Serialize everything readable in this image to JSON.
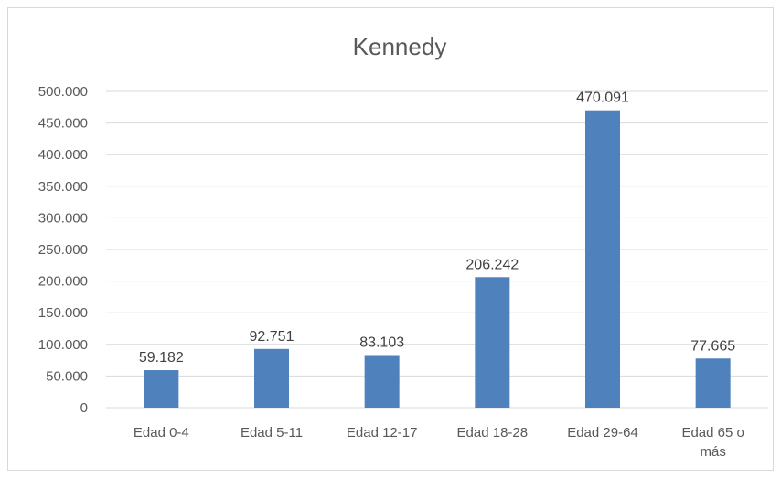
{
  "chart_data": {
    "type": "bar",
    "title": "Kennedy",
    "categories": [
      "Edad 0-4",
      "Edad 5-11",
      "Edad 12-17",
      "Edad 18-28",
      "Edad 29-64",
      "Edad 65 o más"
    ],
    "category_label_lines": [
      [
        "Edad 0-4"
      ],
      [
        "Edad 5-11"
      ],
      [
        "Edad 12-17"
      ],
      [
        "Edad 18-28"
      ],
      [
        "Edad 29-64"
      ],
      [
        "Edad 65 o",
        "más"
      ]
    ],
    "values": [
      59182,
      92751,
      83103,
      206242,
      470091,
      77665
    ],
    "value_labels": [
      "59.182",
      "92.751",
      "83.103",
      "206.242",
      "470.091",
      "77.665"
    ],
    "yticks": [
      0,
      50000,
      100000,
      150000,
      200000,
      250000,
      300000,
      350000,
      400000,
      450000,
      500000
    ],
    "ytick_labels": [
      "0",
      "50.000",
      "100.000",
      "150.000",
      "200.000",
      "250.000",
      "300.000",
      "350.000",
      "400.000",
      "450.000",
      "500.000"
    ],
    "ylim": [
      0,
      500000
    ],
    "xlabel": "",
    "ylabel": "",
    "grid": "horizontal",
    "bar_color": "#4f81bd",
    "grid_color": "#d9d9d9"
  }
}
